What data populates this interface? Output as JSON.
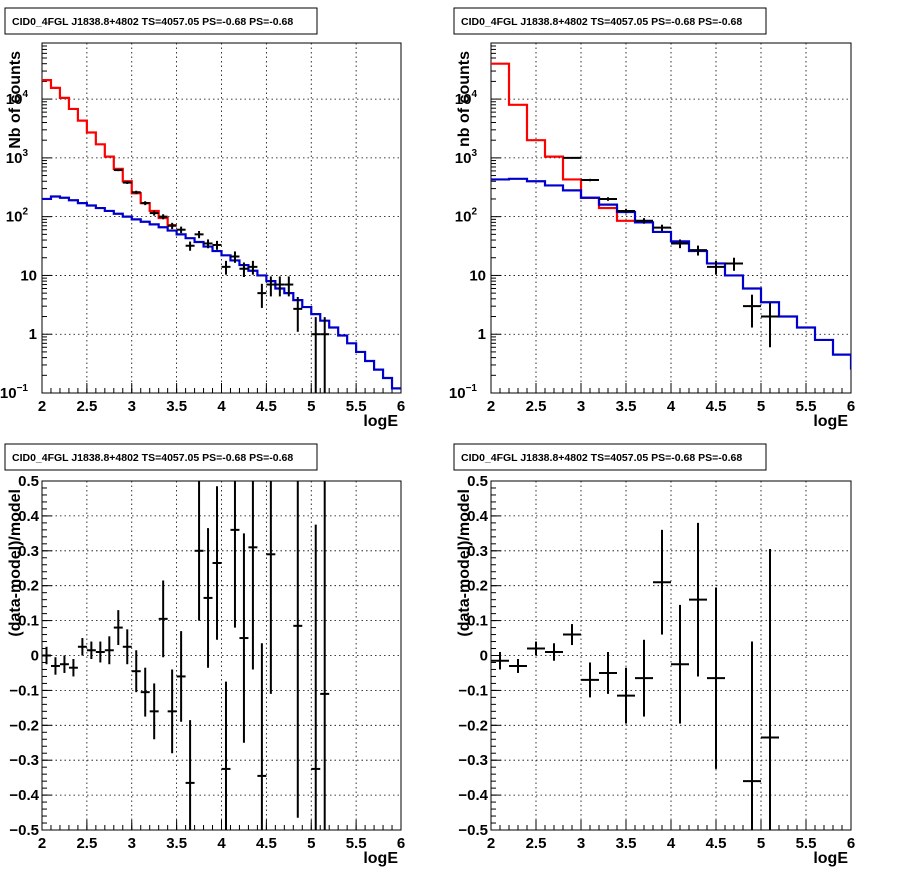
{
  "chart_data": [
    {
      "type": "line",
      "title": "CID0_4FGL J1838.8+4802 TS=4057.05 PS=-0.68 PS=-0.68",
      "xlabel": "logE",
      "ylabel": "Nb of counts",
      "xlim": [
        2,
        6
      ],
      "ylim": [
        0.1,
        90000
      ],
      "yscale": "log",
      "grid": true,
      "xticks": [
        "2",
        "2.5",
        "3",
        "3.5",
        "4",
        "4.5",
        "5",
        "5.5",
        "6"
      ],
      "yticks": [
        {
          "v": 0.1,
          "label": "10",
          "sup": "−1"
        },
        {
          "v": 1,
          "label": "1",
          "sup": ""
        },
        {
          "v": 10,
          "label": "10",
          "sup": ""
        },
        {
          "v": 100,
          "label": "10",
          "sup": "2"
        },
        {
          "v": 1000,
          "label": "10",
          "sup": "3"
        },
        {
          "v": 10000,
          "label": "10",
          "sup": "4"
        }
      ],
      "series": [
        {
          "color": "#ff0000",
          "style": "step",
          "edges": [
            2.0,
            2.1,
            2.2,
            2.3,
            2.4,
            2.5,
            2.6,
            2.7,
            2.8,
            2.9,
            3.0,
            3.1,
            3.2,
            3.3,
            3.4,
            3.5
          ],
          "values": [
            21000,
            15500,
            10500,
            6800,
            4300,
            2700,
            1700,
            1050,
            650,
            400,
            250,
            170,
            125,
            95,
            72
          ]
        },
        {
          "color": "#0000cc",
          "style": "step",
          "edges": [
            2.0,
            2.1,
            2.2,
            2.3,
            2.4,
            2.5,
            2.6,
            2.7,
            2.8,
            2.9,
            3.0,
            3.1,
            3.2,
            3.3,
            3.4,
            3.5,
            3.6,
            3.7,
            3.8,
            3.9,
            4.0,
            4.1,
            4.2,
            4.3,
            4.4,
            4.5,
            4.6,
            4.7,
            4.8,
            4.9,
            5.0,
            5.1,
            5.2,
            5.3,
            5.4,
            5.5,
            5.6,
            5.7,
            5.8,
            5.9,
            6.0
          ],
          "values": [
            200,
            220,
            210,
            190,
            170,
            155,
            140,
            125,
            112,
            100,
            90,
            82,
            74,
            66,
            58,
            50,
            43,
            37,
            31,
            26,
            22,
            18,
            15,
            12,
            10,
            8,
            6,
            5,
            3.8,
            2.9,
            2.2,
            1.7,
            1.3,
            0.95,
            0.7,
            0.5,
            0.35,
            0.25,
            0.18,
            0.12
          ]
        },
        {
          "color": "#000000",
          "style": "points",
          "x": [
            2.85,
            2.95,
            3.05,
            3.15,
            3.25,
            3.35,
            3.45,
            3.55,
            3.65,
            3.75,
            3.85,
            3.95,
            4.05,
            4.15,
            4.25,
            4.35,
            4.45,
            4.55,
            4.65,
            4.75,
            4.85,
            5.05,
            5.15
          ],
          "y": [
            620,
            380,
            260,
            170,
            115,
            100,
            70,
            60,
            32,
            50,
            35,
            33,
            14,
            21,
            13,
            14,
            5,
            7,
            7,
            7,
            2.7,
            1,
            1
          ],
          "err": [
            25,
            20,
            16,
            13,
            11,
            10,
            8.5,
            7.7,
            5.7,
            7,
            6,
            5.7,
            3.7,
            4.6,
            3.6,
            3.7,
            2.2,
            2.6,
            2.6,
            2.6,
            1.6,
            0.95,
            0.95
          ]
        }
      ]
    },
    {
      "type": "line",
      "title": "CID0_4FGL J1838.8+4802 TS=4057.05 PS=-0.68 PS=-0.68",
      "xlabel": "logE",
      "ylabel": "nb of counts",
      "xlim": [
        2,
        6
      ],
      "ylim": [
        0.1,
        90000
      ],
      "yscale": "log",
      "grid": true,
      "xticks": [
        "2",
        "2.5",
        "3",
        "3.5",
        "4",
        "4.5",
        "5",
        "5.5",
        "6"
      ],
      "yticks": [
        {
          "v": 0.1,
          "label": "10",
          "sup": "−1"
        },
        {
          "v": 1,
          "label": "1",
          "sup": ""
        },
        {
          "v": 10,
          "label": "10",
          "sup": ""
        },
        {
          "v": 100,
          "label": "10",
          "sup": "2"
        },
        {
          "v": 1000,
          "label": "10",
          "sup": "3"
        },
        {
          "v": 10000,
          "label": "10",
          "sup": "4"
        }
      ],
      "series": [
        {
          "color": "#ff0000",
          "style": "step",
          "edges": [
            2.0,
            2.2,
            2.4,
            2.6,
            2.8,
            3.0,
            3.2,
            3.4,
            3.6
          ],
          "values": [
            40000,
            8000,
            2000,
            1050,
            430,
            210,
            140,
            85
          ]
        },
        {
          "color": "#0000cc",
          "style": "step",
          "edges": [
            2.0,
            2.2,
            2.4,
            2.6,
            2.8,
            3.0,
            3.2,
            3.4,
            3.6,
            3.8,
            4.0,
            4.2,
            4.4,
            4.6,
            4.8,
            5.0,
            5.2,
            5.4,
            5.6,
            5.8,
            6.0
          ],
          "values": [
            430,
            440,
            400,
            340,
            280,
            210,
            160,
            120,
            80,
            55,
            38,
            26,
            16,
            10,
            6,
            3.5,
            2,
            1.3,
            0.8,
            0.45,
            0.25
          ]
        },
        {
          "color": "#000000",
          "style": "points",
          "x": [
            2.9,
            3.1,
            3.3,
            3.5,
            3.7,
            3.9,
            4.1,
            4.3,
            4.5,
            4.7,
            4.9,
            5.1
          ],
          "y": [
            1000,
            420,
            200,
            125,
            85,
            65,
            35,
            27,
            14,
            16,
            3,
            2
          ],
          "err": [
            32,
            20,
            14,
            11,
            9.2,
            8,
            5.9,
            5.2,
            3.7,
            4,
            1.7,
            1.4
          ]
        }
      ]
    },
    {
      "type": "scatter",
      "title": "CID0_4FGL J1838.8+4802 TS=4057.05 PS=-0.68 PS=-0.68",
      "xlabel": "logE",
      "ylabel": "(data-model)/model",
      "xlim": [
        2,
        6
      ],
      "ylim": [
        -0.5,
        0.5
      ],
      "grid": true,
      "xticks": [
        "2",
        "2.5",
        "3",
        "3.5",
        "4",
        "4.5",
        "5",
        "5.5",
        "6"
      ],
      "yticks": [
        "−0.5",
        "−0.4",
        "−0.3",
        "−0.2",
        "−0.1",
        "0",
        "0.1",
        "0.2",
        "0.3",
        "0.4",
        "0.5"
      ],
      "points": {
        "x": [
          2.05,
          2.15,
          2.25,
          2.35,
          2.45,
          2.55,
          2.65,
          2.75,
          2.85,
          2.95,
          3.05,
          3.15,
          3.25,
          3.35,
          3.45,
          3.55,
          3.65,
          3.75,
          3.85,
          3.95,
          4.05,
          4.15,
          4.25,
          4.35,
          4.45,
          4.55,
          4.85,
          5.05,
          5.15
        ],
        "y": [
          0.0,
          -0.03,
          -0.025,
          -0.035,
          0.025,
          0.015,
          0.01,
          0.015,
          0.08,
          0.025,
          -0.045,
          -0.105,
          -0.16,
          0.105,
          -0.16,
          -0.06,
          -0.365,
          0.3,
          0.165,
          0.265,
          -0.325,
          0.36,
          0.05,
          0.31,
          -0.345,
          0.29,
          0.085,
          -0.325,
          -0.11
        ],
        "err": [
          0.025,
          0.025,
          0.025,
          0.025,
          0.025,
          0.025,
          0.03,
          0.04,
          0.05,
          0.05,
          0.06,
          0.07,
          0.08,
          0.11,
          0.12,
          0.13,
          0.18,
          0.2,
          0.2,
          0.22,
          0.25,
          0.28,
          0.3,
          0.35,
          0.38,
          0.4,
          0.55,
          0.7,
          0.8
        ],
        "xerr": 0.05
      }
    },
    {
      "type": "scatter",
      "title": "CID0_4FGL J1838.8+4802 TS=4057.05 PS=-0.68 PS=-0.68",
      "xlabel": "logE",
      "ylabel": "(data-model)/model",
      "xlim": [
        2,
        6
      ],
      "ylim": [
        -0.5,
        0.5
      ],
      "grid": true,
      "xticks": [
        "2",
        "2.5",
        "3",
        "3.5",
        "4",
        "4.5",
        "5",
        "5.5",
        "6"
      ],
      "yticks": [
        "−0.5",
        "−0.4",
        "−0.3",
        "−0.2",
        "−0.1",
        "0",
        "0.1",
        "0.2",
        "0.3",
        "0.4",
        "0.5"
      ],
      "points": {
        "x": [
          2.1,
          2.3,
          2.5,
          2.7,
          2.9,
          3.1,
          3.3,
          3.5,
          3.7,
          3.9,
          4.1,
          4.3,
          4.5,
          4.9,
          5.1
        ],
        "y": [
          -0.015,
          -0.03,
          0.02,
          0.01,
          0.06,
          -0.07,
          -0.05,
          -0.115,
          -0.065,
          0.21,
          -0.025,
          0.16,
          -0.065,
          -0.36,
          -0.235
        ],
        "err": [
          0.025,
          0.02,
          0.02,
          0.025,
          0.03,
          0.05,
          0.06,
          0.08,
          0.11,
          0.15,
          0.17,
          0.22,
          0.26,
          0.4,
          0.54
        ],
        "xerr": 0.1
      }
    }
  ]
}
